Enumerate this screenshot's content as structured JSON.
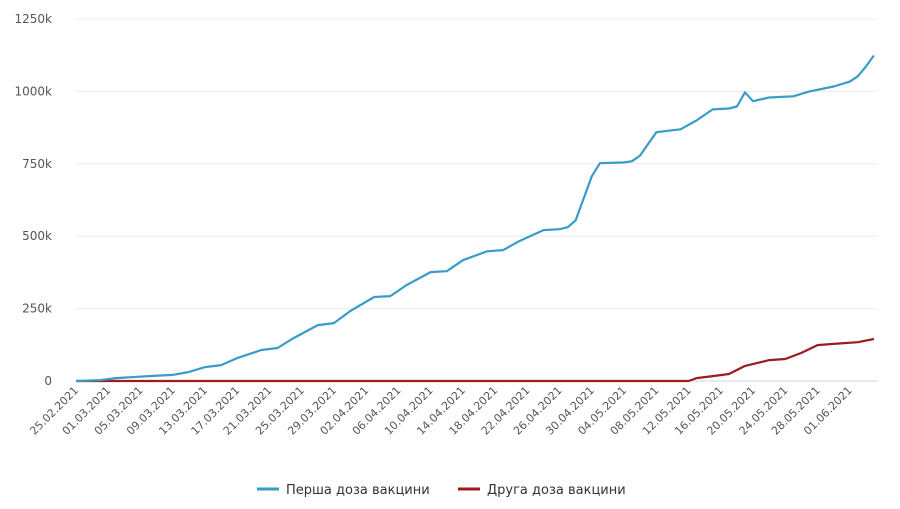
{
  "chart_data": {
    "type": "line",
    "title": "",
    "xlabel": "",
    "ylabel": "",
    "ylim": [
      0,
      1250000
    ],
    "yticks": [
      0,
      250000,
      500000,
      750000,
      1000000,
      1250000
    ],
    "ytick_labels": [
      "0",
      "250k",
      "500k",
      "750k",
      "1000k",
      "1250k"
    ],
    "xtick_labels": [
      "25.02.2021",
      "01.03.2021",
      "05.03.2021",
      "09.03.2021",
      "13.03.2021",
      "17.03.2021",
      "21.03.2021",
      "25.03.2021",
      "29.03.2021",
      "02.04.2021",
      "06.04.2021",
      "10.04.2021",
      "14.04.2021",
      "18.04.2021",
      "22.04.2021",
      "26.04.2021",
      "30.04.2021",
      "04.05.2021",
      "08.05.2021",
      "12.05.2021",
      "16.05.2021",
      "20.05.2021",
      "24.05.2021",
      "28.05.2021",
      "01.06.2021"
    ],
    "grid": true,
    "legend_position": "bottom",
    "series": [
      {
        "name": "Перша доза вакцини",
        "color": "#3a9bc8",
        "x": [
          "25.02.2021",
          "28.02.2021",
          "02.03.2021",
          "06.03.2021",
          "09.03.2021",
          "11.03.2021",
          "13.03.2021",
          "15.03.2021",
          "17.03.2021",
          "20.03.2021",
          "22.03.2021",
          "24.03.2021",
          "27.03.2021",
          "29.03.2021",
          "31.03.2021",
          "03.04.2021",
          "05.04.2021",
          "07.04.2021",
          "10.04.2021",
          "12.04.2021",
          "14.04.2021",
          "17.04.2021",
          "19.04.2021",
          "21.04.2021",
          "24.04.2021",
          "26.04.2021",
          "27.04.2021",
          "28.04.2021",
          "30.04.2021",
          "01.05.2021",
          "04.05.2021",
          "05.05.2021",
          "06.05.2021",
          "08.05.2021",
          "11.05.2021",
          "13.05.2021",
          "15.05.2021",
          "17.05.2021",
          "18.05.2021",
          "19.05.2021",
          "20.05.2021",
          "22.05.2021",
          "25.05.2021",
          "27.05.2021",
          "30.05.2021",
          "01.06.2021",
          "02.06.2021",
          "03.06.2021",
          "04.06.2021"
        ],
        "y": [
          0,
          3000,
          10000,
          17000,
          21000,
          31000,
          48000,
          55000,
          79000,
          107000,
          114000,
          148000,
          193000,
          200000,
          241000,
          290000,
          293000,
          331000,
          376000,
          379000,
          417000,
          448000,
          452000,
          483000,
          521000,
          524000,
          531000,
          555000,
          707000,
          752000,
          755000,
          759000,
          779000,
          859000,
          869000,
          900000,
          938000,
          941000,
          948000,
          997000,
          966000,
          979000,
          983000,
          1000000,
          1017000,
          1034000,
          1052000,
          1086000,
          1124000
        ]
      },
      {
        "name": "Друга доза вакцини",
        "color": "#9b1b1e",
        "x": [
          "25.02.2021",
          "12.05.2021",
          "13.05.2021",
          "15.05.2021",
          "17.05.2021",
          "19.05.2021",
          "22.05.2021",
          "24.05.2021",
          "26.05.2021",
          "28.05.2021",
          "30.05.2021",
          "02.06.2021",
          "04.06.2021"
        ],
        "y": [
          0,
          0,
          10000,
          17000,
          24000,
          52000,
          72000,
          76000,
          97000,
          124000,
          128000,
          134000,
          145000
        ]
      }
    ]
  }
}
